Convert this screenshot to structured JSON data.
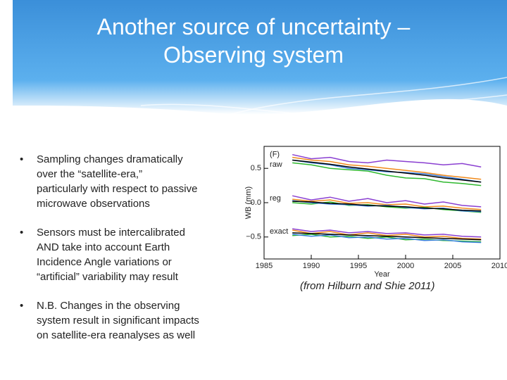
{
  "header": {
    "title_lines": [
      "Another source of uncertainty –",
      "Observing system"
    ]
  },
  "bullets": [
    [
      "Sampling changes dramatically",
      "over the “satellite-era,”",
      "particularly with respect to passive",
      "microwave observations"
    ],
    [
      "Sensors must be intercalibrated",
      "AND take into account Earth",
      "Incidence Angle variations or",
      "“artificial” variability may result"
    ],
    [
      "N.B. Changes in the observing",
      "system result in significant impacts",
      "on satellite-era reanalyses as well"
    ]
  ],
  "caption": "(from Hilburn and Shie 2011)",
  "chart_data": {
    "type": "line",
    "xlabel": "Year",
    "ylabel": "WB (mm)",
    "xlim": [
      1985,
      2010
    ],
    "xticks": [
      1985,
      1990,
      1995,
      2000,
      2005,
      2010
    ],
    "ylim": [
      -0.82,
      0.82
    ],
    "yticks": [
      {
        "value": 0.5,
        "label": "0.5"
      },
      {
        "value": 0,
        "label": "0.0"
      },
      {
        "value": -0.5,
        "label": "−0.5"
      }
    ],
    "annotations": [
      {
        "text": "(F)",
        "x": 1985.6,
        "y": 0.7
      },
      {
        "text": "raw",
        "x": 1985.6,
        "y": 0.55
      },
      {
        "text": "reg",
        "x": 1985.6,
        "y": 0.06
      },
      {
        "text": "exact",
        "x": 1985.6,
        "y": -0.42
      }
    ],
    "x": [
      1988,
      1990,
      1992,
      1994,
      1996,
      1998,
      2000,
      2002,
      2004,
      2006,
      2008
    ],
    "series": [
      {
        "color": "#f08a1c",
        "values": [
          0.66,
          0.62,
          0.6,
          0.55,
          0.53,
          0.5,
          0.47,
          0.44,
          0.4,
          0.37,
          0.34
        ]
      },
      {
        "color": "#8a3fd1",
        "values": [
          0.7,
          0.64,
          0.66,
          0.6,
          0.58,
          0.62,
          0.6,
          0.58,
          0.55,
          0.57,
          0.52
        ]
      },
      {
        "color": "#2eb82e",
        "values": [
          0.58,
          0.55,
          0.5,
          0.48,
          0.46,
          0.4,
          0.36,
          0.35,
          0.3,
          0.28,
          0.25
        ]
      },
      {
        "color": "#3a7fe0",
        "values": [
          0.62,
          0.58,
          0.55,
          0.5,
          0.48,
          0.45,
          0.44,
          0.42,
          0.38,
          0.34,
          0.3
        ]
      },
      {
        "color": "#000000",
        "values": [
          0.62,
          0.59,
          0.56,
          0.52,
          0.49,
          0.46,
          0.43,
          0.4,
          0.36,
          0.33,
          0.3
        ]
      },
      {
        "color": "#f08a1c",
        "values": [
          0.05,
          0.02,
          0.04,
          -0.01,
          0.0,
          -0.03,
          -0.02,
          -0.06,
          -0.05,
          -0.08,
          -0.1
        ]
      },
      {
        "color": "#8a3fd1",
        "values": [
          0.1,
          0.04,
          0.08,
          0.02,
          0.06,
          0.0,
          0.03,
          -0.02,
          0.01,
          -0.04,
          -0.06
        ]
      },
      {
        "color": "#2eb82e",
        "values": [
          0.0,
          -0.02,
          0.01,
          -0.04,
          -0.03,
          -0.06,
          -0.08,
          -0.07,
          -0.1,
          -0.12,
          -0.14
        ]
      },
      {
        "color": "#3a7fe0",
        "values": [
          0.03,
          0.0,
          -0.02,
          -0.03,
          -0.05,
          -0.04,
          -0.07,
          -0.09,
          -0.08,
          -0.12,
          -0.13
        ]
      },
      {
        "color": "#000000",
        "values": [
          0.02,
          0.01,
          -0.01,
          -0.02,
          -0.04,
          -0.05,
          -0.06,
          -0.08,
          -0.09,
          -0.11,
          -0.12
        ]
      },
      {
        "color": "#f08a1c",
        "values": [
          -0.4,
          -0.45,
          -0.42,
          -0.47,
          -0.44,
          -0.48,
          -0.46,
          -0.5,
          -0.49,
          -0.52,
          -0.53
        ]
      },
      {
        "color": "#8a3fd1",
        "values": [
          -0.38,
          -0.42,
          -0.4,
          -0.44,
          -0.42,
          -0.45,
          -0.44,
          -0.47,
          -0.46,
          -0.49,
          -0.5
        ]
      },
      {
        "color": "#2eb82e",
        "values": [
          -0.48,
          -0.46,
          -0.5,
          -0.49,
          -0.52,
          -0.5,
          -0.54,
          -0.53,
          -0.55,
          -0.56,
          -0.57
        ]
      },
      {
        "color": "#3a7fe0",
        "values": [
          -0.46,
          -0.49,
          -0.47,
          -0.51,
          -0.5,
          -0.53,
          -0.52,
          -0.55,
          -0.54,
          -0.57,
          -0.58
        ]
      },
      {
        "color": "#000000",
        "values": [
          -0.44,
          -0.45,
          -0.46,
          -0.47,
          -0.48,
          -0.49,
          -0.5,
          -0.51,
          -0.52,
          -0.53,
          -0.54
        ]
      }
    ]
  }
}
